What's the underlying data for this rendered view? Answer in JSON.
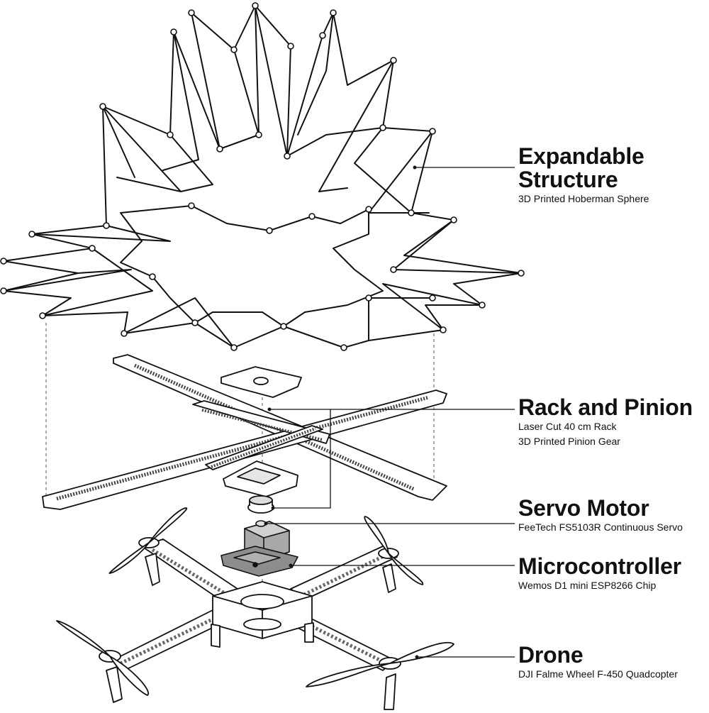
{
  "labels": {
    "expandable": {
      "title_line1": "Expandable",
      "title_line2": "Structure",
      "subtitle": "3D Printed Hoberman Sphere"
    },
    "rack": {
      "title": "Rack and Pinion",
      "subtitle_line1": "Laser Cut 40 cm Rack",
      "subtitle_line2": "3D Printed Pinion Gear"
    },
    "servo": {
      "title": "Servo Motor",
      "subtitle": "FeeTech FS5103R Continuous Servo"
    },
    "micro": {
      "title": "Microcontroller",
      "subtitle": "Wemos D1 mini ESP8266 Chip"
    },
    "drone": {
      "title": "Drone",
      "subtitle": "DJI Falme Wheel F-450 Quadcopter"
    }
  },
  "colors": {
    "line": "#111111",
    "fill_light": "#ffffff",
    "fill_grey": "#b8b8b8",
    "fill_mid": "#8a8a8a"
  }
}
